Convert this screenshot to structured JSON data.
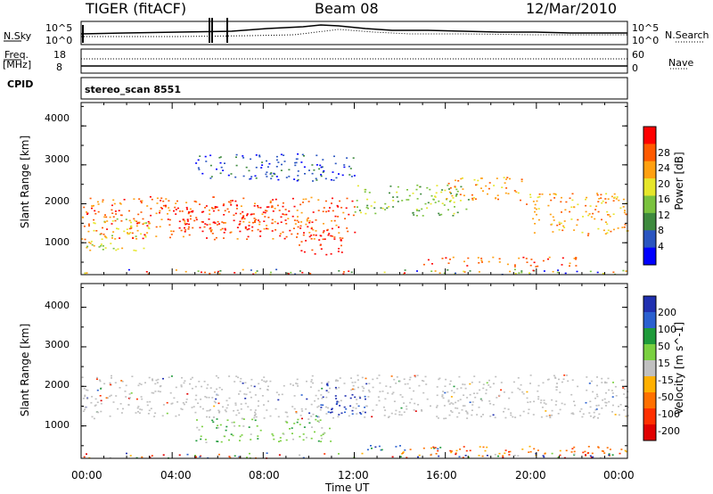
{
  "header": {
    "title": "TIGER (fitACF)",
    "beam": "Beam 08",
    "date": "12/Mar/2010"
  },
  "panels": {
    "nsky": {
      "label": "N.Sky",
      "ytick_top": "10^5",
      "ytick_bottom": "10^0",
      "right_label": "N.Search",
      "right_tick_top": "10^5",
      "right_tick_bottom": "10^0"
    },
    "freq": {
      "label_line1": "Freq.",
      "label_line2": "[MHz]",
      "ytick_top": "18",
      "ytick_bottom": "8",
      "right_label": "Nave",
      "right_tick_top": "60",
      "right_tick_bottom": "0"
    },
    "cpid": {
      "label": "CPID",
      "value": "stereo_scan 8551"
    }
  },
  "chart_data": [
    {
      "type": "heatmap",
      "name": "power",
      "xlabel": "",
      "ylabel": "Slant Range [km]",
      "yticks": [
        "1000",
        "2000",
        "3000",
        "4000"
      ],
      "ylim": [
        180,
        4600
      ],
      "xlim": [
        0,
        24
      ],
      "colorbar": {
        "label": "Power [dB]",
        "ticks": [
          "4",
          "8",
          "12",
          "16",
          "20",
          "24",
          "28"
        ],
        "colors": [
          "#0000ff",
          "#2a55c0",
          "#3e8a3e",
          "#7ac23e",
          "#e6e62a",
          "#ffa010",
          "#ff5a00",
          "#ff0000"
        ]
      },
      "bands": [
        {
          "t": [
            0,
            24
          ],
          "r": [
            200,
            330
          ],
          "level": "mixed"
        },
        {
          "t": [
            0.2,
            3
          ],
          "r": [
            800,
            1700
          ],
          "level": 4
        },
        {
          "t": [
            0,
            12
          ],
          "r": [
            1100,
            2200
          ],
          "level": 6
        },
        {
          "t": [
            4,
            9
          ],
          "r": [
            1300,
            2000
          ],
          "level": 7
        },
        {
          "t": [
            9.5,
            11.5
          ],
          "r": [
            700,
            1400
          ],
          "level": 7
        },
        {
          "t": [
            12,
            17
          ],
          "r": [
            1700,
            2500
          ],
          "level": 3
        },
        {
          "t": [
            16,
            19.5
          ],
          "r": [
            2100,
            2700
          ],
          "level": 5
        },
        {
          "t": [
            19.5,
            24
          ],
          "r": [
            1200,
            2300
          ],
          "level": 5
        },
        {
          "t": [
            15,
            22
          ],
          "r": [
            400,
            650
          ],
          "level": 6
        },
        {
          "t": [
            5,
            12
          ],
          "r": [
            2600,
            3300
          ],
          "level": 1
        }
      ]
    },
    {
      "type": "heatmap",
      "name": "velocity",
      "xlabel": "Time UT",
      "ylabel": "Slant Range [km]",
      "xticks": [
        "00:00",
        "04:00",
        "08:00",
        "12:00",
        "16:00",
        "20:00",
        "00:00"
      ],
      "yticks": [
        "1000",
        "2000",
        "3000",
        "4000"
      ],
      "ylim": [
        180,
        4600
      ],
      "xlim": [
        0,
        24
      ],
      "colorbar": {
        "label": "Velocity [m s^-1]",
        "ticks": [
          "200",
          "100",
          "50",
          "15",
          "-15",
          "-50",
          "-100",
          "-200"
        ],
        "colors": [
          "#2030b0",
          "#2a60d0",
          "#1e9a3a",
          "#7ad040",
          "#c0c0c0",
          "#ffb000",
          "#ff7000",
          "#ff3000",
          "#e00000"
        ]
      },
      "bands": [
        {
          "t": [
            0,
            24
          ],
          "r": [
            1200,
            2300
          ],
          "level": "ground"
        },
        {
          "t": [
            5,
            11
          ],
          "r": [
            600,
            1200
          ],
          "level": 3
        },
        {
          "t": [
            10.5,
            12.5
          ],
          "r": [
            1300,
            2100
          ],
          "level": 0
        },
        {
          "t": [
            12.5,
            16
          ],
          "r": [
            400,
            550
          ],
          "level": 1
        },
        {
          "t": [
            14,
            24
          ],
          "r": [
            250,
            500
          ],
          "level": 6
        },
        {
          "t": [
            0,
            24
          ],
          "r": [
            200,
            330
          ],
          "level": "mixed"
        }
      ]
    }
  ]
}
